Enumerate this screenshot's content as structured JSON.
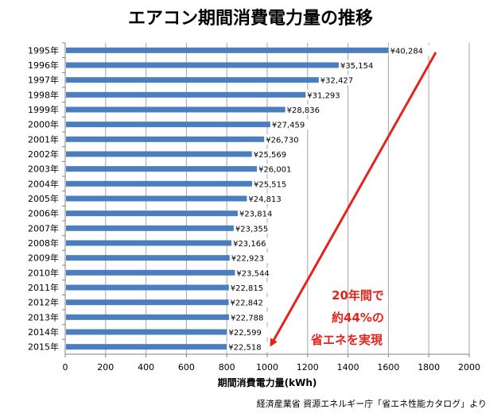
{
  "chart_data": {
    "type": "bar",
    "orientation": "horizontal",
    "title": "エアコン期間消費電力量の推移",
    "xlabel": "期間消費電力量(kWh)",
    "ylabel": "",
    "xlim": [
      0,
      2000
    ],
    "xticks": [
      "0",
      "200",
      "400",
      "600",
      "800",
      "1000",
      "1200",
      "1400",
      "1600",
      "1800",
      "2000"
    ],
    "grid": "vertical",
    "categories": [
      "1995年",
      "1996年",
      "1997年",
      "1998年",
      "1999年",
      "2000年",
      "2001年",
      "2002年",
      "2003年",
      "2004年",
      "2005年",
      "2006年",
      "2007年",
      "2008年",
      "2009年",
      "2010年",
      "2011年",
      "2012年",
      "2013年",
      "2014年",
      "2015年"
    ],
    "values": [
      1798,
      1551,
      1452,
      1387,
      1286,
      1212,
      1182,
      1121,
      1146,
      1122,
      1096,
      1051,
      1031,
      1020,
      1011,
      1037,
      1007,
      1006,
      1008,
      998,
      997
    ],
    "data_labels": [
      "¥40,284",
      "¥35,154",
      "¥32,427",
      "¥31,293",
      "¥28,836",
      "¥27,459",
      "¥26,730",
      "¥25,569",
      "¥26,001",
      "¥25,515",
      "¥24,813",
      "¥23,814",
      "¥23,355",
      "¥23,166",
      "¥22,923",
      "¥23,544",
      "¥22,815",
      "¥22,842",
      "¥22,788",
      "¥22,599",
      "¥22,518"
    ],
    "bar_color": "#4a7ebf",
    "label_bg": "#ffffff",
    "annotation": {
      "lines": [
        "20年間で",
        "約44%の",
        "省エネを実現"
      ],
      "color": "#e5231b"
    }
  },
  "source": "経済産業省 資源エネルギー庁「省エネ性能カタログ」より"
}
